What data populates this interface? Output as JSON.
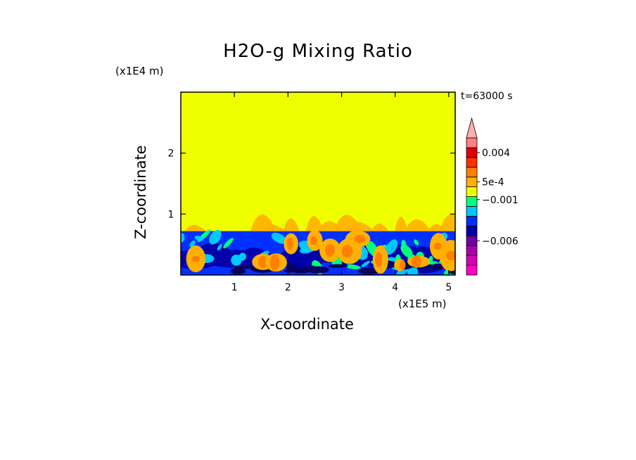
{
  "chart_data": {
    "type": "heatmap",
    "title": "H2O-g Mixing Ratio",
    "xlabel": "X-coordinate",
    "ylabel": "Z-coordinate",
    "x_scale_label": "(x1E5 m)",
    "y_scale_label": "(x1E4 m)",
    "time_label": "t=63000 s",
    "xlim": [
      0.0,
      5.12
    ],
    "ylim": [
      0.0,
      3.0
    ],
    "x_ticks": [
      "1",
      "2",
      "3",
      "4",
      "5"
    ],
    "x_tick_values": [
      1,
      2,
      3,
      4,
      5
    ],
    "y_ticks": [
      "1",
      "2"
    ],
    "y_tick_values": [
      1,
      2
    ],
    "upper_region": {
      "z_from": 0.72,
      "z_to": 3.0,
      "color": "#f0ff00"
    },
    "boundary_layer_top": 0.72,
    "colorbar": {
      "colors": [
        "#ff00c8",
        "#d400b4",
        "#aa00aa",
        "#7000a0",
        "#0000aa",
        "#0030ff",
        "#00c8ff",
        "#00ff7f",
        "#f0ff00",
        "#ffb000",
        "#ff8000",
        "#ff3000",
        "#e00000",
        "#ff8080",
        "#ffb0b0"
      ],
      "labels": [
        "0.004",
        "5e-4",
        "−0.001",
        "−0.006"
      ],
      "label_levels": [
        12.5,
        9.5,
        7.7,
        3.5
      ]
    }
  }
}
